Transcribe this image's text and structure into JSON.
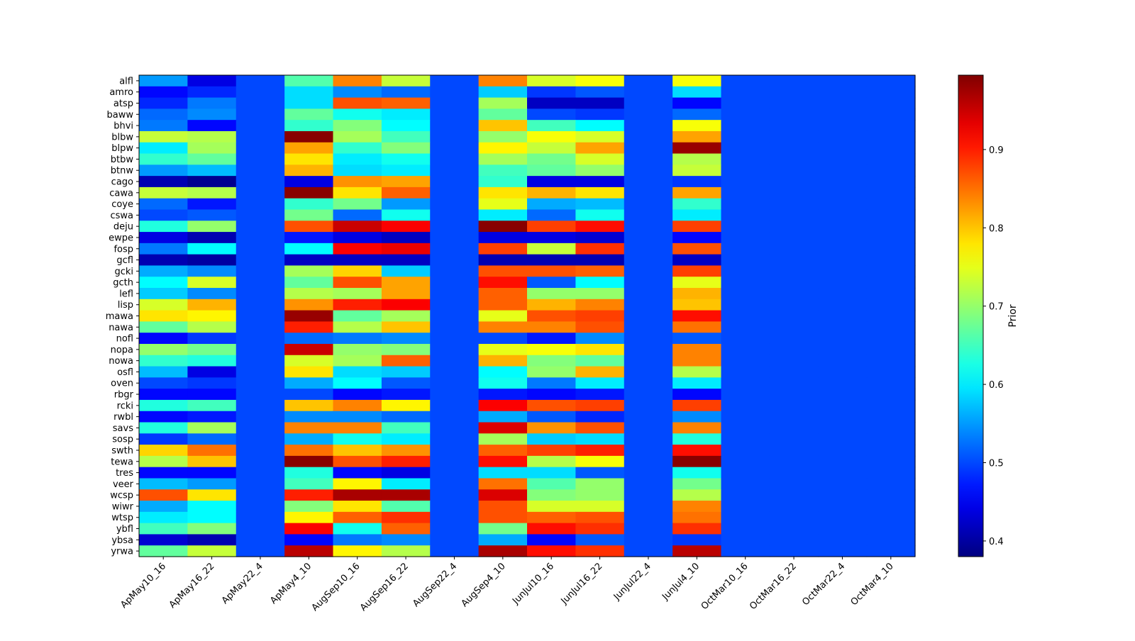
{
  "chart_data": {
    "type": "heatmap",
    "title": "",
    "xlabel": "",
    "ylabel": "",
    "colormap": "jet",
    "vmin": 0.38,
    "vmax": 0.995,
    "x": [
      "ApMay10_16",
      "ApMay16_22",
      "ApMay22_4",
      "ApMay4_10",
      "AugSep10_16",
      "AugSep16_22",
      "AugSep22_4",
      "AugSep4_10",
      "JunJul10_16",
      "JunJul16_22",
      "JunJul22_4",
      "JunJul4_10",
      "OctMar10_16",
      "OctMar16_22",
      "OctMar22_4",
      "OctMar4_10"
    ],
    "y": [
      "alfl",
      "amro",
      "atsp",
      "baww",
      "bhvi",
      "blbw",
      "blpw",
      "btbw",
      "btnw",
      "cago",
      "cawa",
      "coye",
      "cswa",
      "deju",
      "ewpe",
      "fosp",
      "gcfl",
      "gcki",
      "gcth",
      "lefl",
      "lisp",
      "mawa",
      "nawa",
      "nofl",
      "nopa",
      "nowa",
      "osfl",
      "oven",
      "rbgr",
      "rcki",
      "rwbl",
      "savs",
      "sosp",
      "swth",
      "tewa",
      "tres",
      "veer",
      "wcsp",
      "wiwr",
      "wtsp",
      "ybfl",
      "ybsa",
      "yrwa"
    ],
    "z": [
      [
        0.55,
        0.44,
        0.5,
        0.66,
        0.84,
        0.73,
        0.5,
        0.84,
        0.74,
        0.76,
        0.5,
        0.76,
        0.5,
        0.5,
        0.5,
        0.5
      ],
      [
        0.46,
        0.48,
        0.5,
        0.59,
        0.54,
        0.52,
        0.5,
        0.58,
        0.49,
        0.51,
        0.5,
        0.59,
        0.5,
        0.5,
        0.5,
        0.5
      ],
      [
        0.48,
        0.53,
        0.5,
        0.59,
        0.87,
        0.86,
        0.5,
        0.71,
        0.42,
        0.42,
        0.5,
        0.46,
        0.5,
        0.5,
        0.5,
        0.5
      ],
      [
        0.52,
        0.54,
        0.5,
        0.67,
        0.62,
        0.6,
        0.5,
        0.67,
        0.5,
        0.49,
        0.5,
        0.52,
        0.5,
        0.5,
        0.5,
        0.5
      ],
      [
        0.53,
        0.46,
        0.5,
        0.64,
        0.69,
        0.61,
        0.5,
        0.8,
        0.65,
        0.61,
        0.5,
        0.76,
        0.5,
        0.5,
        0.5,
        0.5
      ],
      [
        0.73,
        0.72,
        0.5,
        0.99,
        0.71,
        0.65,
        0.5,
        0.7,
        0.76,
        0.74,
        0.5,
        0.82,
        0.5,
        0.5,
        0.5,
        0.5
      ],
      [
        0.6,
        0.71,
        0.5,
        0.82,
        0.64,
        0.69,
        0.5,
        0.77,
        0.73,
        0.82,
        0.5,
        0.98,
        0.5,
        0.5,
        0.5,
        0.5
      ],
      [
        0.64,
        0.67,
        0.5,
        0.78,
        0.6,
        0.62,
        0.5,
        0.71,
        0.68,
        0.74,
        0.5,
        0.72,
        0.5,
        0.5,
        0.5,
        0.5
      ],
      [
        0.55,
        0.57,
        0.5,
        0.81,
        0.59,
        0.6,
        0.5,
        0.65,
        0.67,
        0.7,
        0.5,
        0.73,
        0.5,
        0.5,
        0.5,
        0.5
      ],
      [
        0.41,
        0.39,
        0.5,
        0.44,
        0.83,
        0.82,
        0.5,
        0.64,
        0.44,
        0.44,
        0.5,
        0.49,
        0.5,
        0.5,
        0.5,
        0.5
      ],
      [
        0.73,
        0.72,
        0.5,
        0.99,
        0.78,
        0.86,
        0.5,
        0.78,
        0.81,
        0.78,
        0.5,
        0.82,
        0.5,
        0.5,
        0.5,
        0.5
      ],
      [
        0.52,
        0.47,
        0.5,
        0.64,
        0.68,
        0.55,
        0.5,
        0.75,
        0.56,
        0.57,
        0.5,
        0.64,
        0.5,
        0.5,
        0.5,
        0.5
      ],
      [
        0.5,
        0.51,
        0.5,
        0.68,
        0.52,
        0.62,
        0.5,
        0.6,
        0.52,
        0.62,
        0.5,
        0.6,
        0.5,
        0.5,
        0.5,
        0.5
      ],
      [
        0.63,
        0.7,
        0.5,
        0.87,
        0.95,
        0.92,
        0.5,
        0.99,
        0.88,
        0.91,
        0.5,
        0.88,
        0.5,
        0.5,
        0.5,
        0.5
      ],
      [
        0.44,
        0.41,
        0.5,
        0.47,
        0.44,
        0.42,
        0.5,
        0.44,
        0.44,
        0.43,
        0.5,
        0.46,
        0.5,
        0.5,
        0.5,
        0.5
      ],
      [
        0.53,
        0.61,
        0.5,
        0.61,
        0.92,
        0.93,
        0.5,
        0.88,
        0.73,
        0.89,
        0.5,
        0.87,
        0.5,
        0.5,
        0.5,
        0.5
      ],
      [
        0.41,
        0.4,
        0.5,
        0.42,
        0.42,
        0.42,
        0.5,
        0.41,
        0.41,
        0.41,
        0.5,
        0.42,
        0.5,
        0.5,
        0.5,
        0.5
      ],
      [
        0.56,
        0.54,
        0.5,
        0.71,
        0.79,
        0.58,
        0.5,
        0.87,
        0.87,
        0.86,
        0.5,
        0.88,
        0.5,
        0.5,
        0.5,
        0.5
      ],
      [
        0.61,
        0.74,
        0.5,
        0.67,
        0.87,
        0.82,
        0.5,
        0.91,
        0.51,
        0.61,
        0.5,
        0.75,
        0.5,
        0.5,
        0.5,
        0.5
      ],
      [
        0.58,
        0.54,
        0.5,
        0.72,
        0.71,
        0.82,
        0.5,
        0.86,
        0.7,
        0.7,
        0.5,
        0.81,
        0.5,
        0.5,
        0.5,
        0.5
      ],
      [
        0.74,
        0.81,
        0.5,
        0.83,
        0.9,
        0.92,
        0.5,
        0.86,
        0.81,
        0.84,
        0.5,
        0.8,
        0.5,
        0.5,
        0.5,
        0.5
      ],
      [
        0.78,
        0.77,
        0.5,
        0.98,
        0.67,
        0.71,
        0.5,
        0.75,
        0.87,
        0.88,
        0.5,
        0.91,
        0.5,
        0.5,
        0.5,
        0.5
      ],
      [
        0.67,
        0.72,
        0.5,
        0.9,
        0.72,
        0.8,
        0.5,
        0.84,
        0.84,
        0.87,
        0.5,
        0.85,
        0.5,
        0.5,
        0.5,
        0.5
      ],
      [
        0.46,
        0.49,
        0.5,
        0.52,
        0.53,
        0.54,
        0.5,
        0.5,
        0.47,
        0.54,
        0.5,
        0.51,
        0.5,
        0.5,
        0.5,
        0.5
      ],
      [
        0.7,
        0.68,
        0.5,
        0.95,
        0.7,
        0.69,
        0.5,
        0.75,
        0.76,
        0.78,
        0.5,
        0.84,
        0.5,
        0.5,
        0.5,
        0.5
      ],
      [
        0.64,
        0.63,
        0.5,
        0.74,
        0.71,
        0.86,
        0.5,
        0.81,
        0.69,
        0.67,
        0.5,
        0.84,
        0.5,
        0.5,
        0.5,
        0.5
      ],
      [
        0.57,
        0.44,
        0.5,
        0.78,
        0.59,
        0.58,
        0.5,
        0.61,
        0.7,
        0.81,
        0.5,
        0.72,
        0.5,
        0.5,
        0.5,
        0.5
      ],
      [
        0.5,
        0.49,
        0.5,
        0.56,
        0.61,
        0.51,
        0.5,
        0.62,
        0.53,
        0.6,
        0.5,
        0.6,
        0.5,
        0.5,
        0.5,
        0.5
      ],
      [
        0.46,
        0.46,
        0.5,
        0.5,
        0.46,
        0.47,
        0.5,
        0.47,
        0.46,
        0.47,
        0.5,
        0.46,
        0.5,
        0.5,
        0.5,
        0.5
      ],
      [
        0.63,
        0.65,
        0.5,
        0.8,
        0.84,
        0.77,
        0.5,
        0.92,
        0.87,
        0.88,
        0.5,
        0.88,
        0.5,
        0.5,
        0.5,
        0.5
      ],
      [
        0.46,
        0.47,
        0.5,
        0.54,
        0.54,
        0.52,
        0.5,
        0.56,
        0.51,
        0.48,
        0.5,
        0.54,
        0.5,
        0.5,
        0.5,
        0.5
      ],
      [
        0.63,
        0.71,
        0.5,
        0.84,
        0.84,
        0.65,
        0.5,
        0.94,
        0.83,
        0.87,
        0.5,
        0.84,
        0.5,
        0.5,
        0.5,
        0.5
      ],
      [
        0.49,
        0.52,
        0.5,
        0.56,
        0.62,
        0.6,
        0.5,
        0.71,
        0.58,
        0.59,
        0.5,
        0.63,
        0.5,
        0.5,
        0.5,
        0.5
      ],
      [
        0.79,
        0.85,
        0.5,
        0.85,
        0.8,
        0.83,
        0.5,
        0.86,
        0.88,
        0.9,
        0.5,
        0.91,
        0.5,
        0.5,
        0.5,
        0.5
      ],
      [
        0.72,
        0.8,
        0.5,
        0.99,
        0.87,
        0.9,
        0.5,
        0.91,
        0.72,
        0.76,
        0.5,
        0.99,
        0.5,
        0.5,
        0.5,
        0.5
      ],
      [
        0.46,
        0.46,
        0.5,
        0.63,
        0.46,
        0.44,
        0.5,
        0.59,
        0.59,
        0.51,
        0.5,
        0.62,
        0.5,
        0.5,
        0.5,
        0.5
      ],
      [
        0.57,
        0.55,
        0.5,
        0.65,
        0.77,
        0.6,
        0.5,
        0.85,
        0.66,
        0.7,
        0.5,
        0.68,
        0.5,
        0.5,
        0.5,
        0.5
      ],
      [
        0.87,
        0.78,
        0.5,
        0.9,
        0.97,
        0.97,
        0.5,
        0.94,
        0.69,
        0.7,
        0.5,
        0.72,
        0.5,
        0.5,
        0.5,
        0.5
      ],
      [
        0.56,
        0.61,
        0.5,
        0.69,
        0.78,
        0.66,
        0.5,
        0.87,
        0.74,
        0.74,
        0.5,
        0.84,
        0.5,
        0.5,
        0.5,
        0.5
      ],
      [
        0.6,
        0.61,
        0.5,
        0.77,
        0.86,
        0.89,
        0.5,
        0.87,
        0.86,
        0.87,
        0.5,
        0.85,
        0.5,
        0.5,
        0.5,
        0.5
      ],
      [
        0.65,
        0.69,
        0.5,
        0.92,
        0.62,
        0.86,
        0.5,
        0.68,
        0.91,
        0.89,
        0.5,
        0.89,
        0.5,
        0.5,
        0.5,
        0.5
      ],
      [
        0.43,
        0.41,
        0.5,
        0.46,
        0.53,
        0.54,
        0.5,
        0.56,
        0.46,
        0.51,
        0.5,
        0.49,
        0.5,
        0.5,
        0.5,
        0.5
      ],
      [
        0.67,
        0.73,
        0.5,
        0.96,
        0.77,
        0.72,
        0.5,
        0.97,
        0.91,
        0.89,
        0.5,
        0.96,
        0.5,
        0.5,
        0.5,
        0.5
      ]
    ],
    "colorbar": {
      "label": "Prior",
      "ticks": [
        0.4,
        0.5,
        0.6,
        0.7,
        0.8,
        0.9
      ],
      "tick_labels": [
        "0.4",
        "0.5",
        "0.6",
        "0.7",
        "0.8",
        "0.9"
      ]
    }
  }
}
